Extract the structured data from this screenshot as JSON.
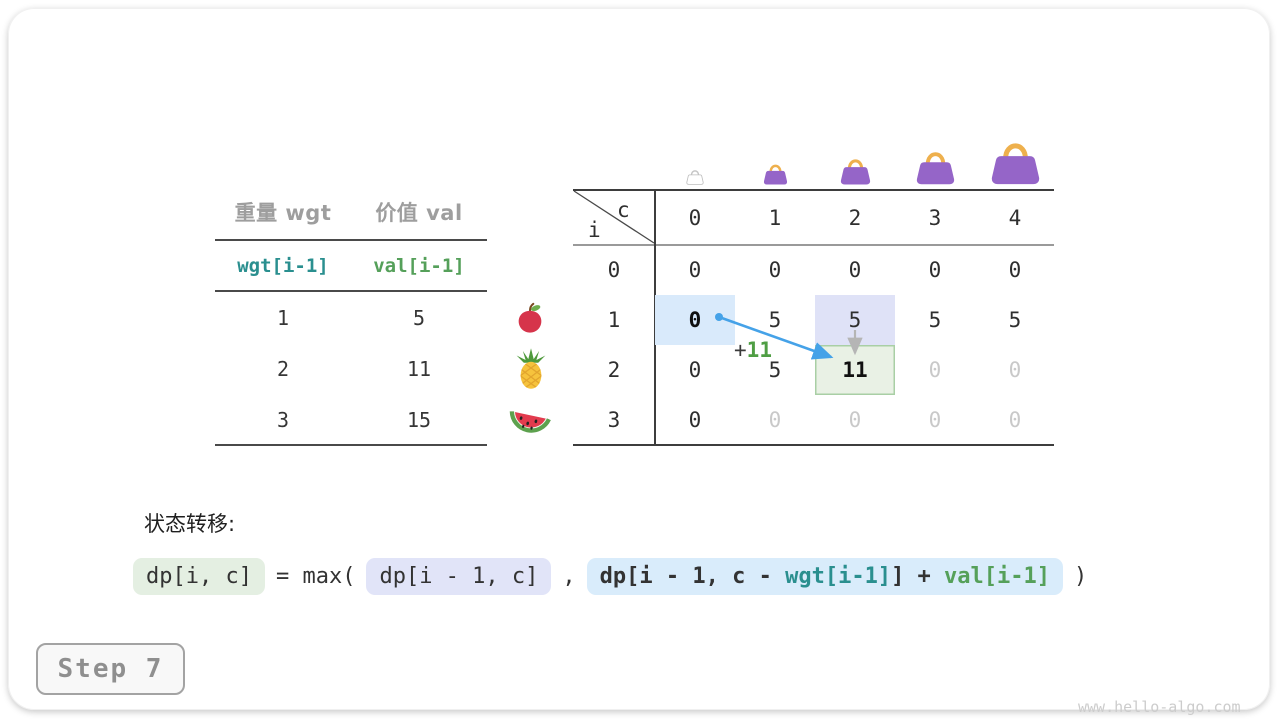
{
  "items_table": {
    "col_headers": [
      "重量 wgt",
      "价值 val"
    ],
    "index_row": [
      "wgt[i-1]",
      "val[i-1]"
    ],
    "rows": [
      [
        "1",
        "5"
      ],
      [
        "2",
        "11"
      ],
      [
        "3",
        "15"
      ]
    ]
  },
  "fruits": [
    {
      "name": "apple"
    },
    {
      "name": "pineapple"
    },
    {
      "name": "watermelon"
    }
  ],
  "dp_table": {
    "corner_top": "c",
    "corner_left": "i",
    "col_headers": [
      "0",
      "1",
      "2",
      "3",
      "4"
    ],
    "row_headers": [
      "0",
      "1",
      "2",
      "3"
    ],
    "bag_capacities": [
      "0",
      "1",
      "2",
      "3",
      "4"
    ],
    "cells": [
      [
        {
          "v": "0"
        },
        {
          "v": "0"
        },
        {
          "v": "0"
        },
        {
          "v": "0"
        },
        {
          "v": "0"
        }
      ],
      [
        {
          "v": "0",
          "s": "b",
          "h": "blue"
        },
        {
          "v": "5"
        },
        {
          "v": "5",
          "h": "lavender"
        },
        {
          "v": "5"
        },
        {
          "v": "5"
        }
      ],
      [
        {
          "v": "0"
        },
        {
          "v": "5"
        },
        {
          "v": "11",
          "s": "b",
          "h": "green"
        },
        {
          "v": "0",
          "s": "d"
        },
        {
          "v": "0",
          "s": "d"
        }
      ],
      [
        {
          "v": "0"
        },
        {
          "v": "0",
          "s": "d"
        },
        {
          "v": "0",
          "s": "d"
        },
        {
          "v": "0",
          "s": "d"
        },
        {
          "v": "0",
          "s": "d"
        }
      ]
    ],
    "annotation_plus": "+",
    "annotation_value": "11"
  },
  "transition": {
    "label": "状态转移:",
    "tokens": [
      {
        "box": "green",
        "parts": [
          {
            "t": "dp[i, c]",
            "c": "dark"
          }
        ]
      },
      {
        "box": null,
        "parts": [
          {
            "t": "= max(",
            "c": "dark"
          }
        ]
      },
      {
        "box": "lavender",
        "parts": [
          {
            "t": "dp[i - 1, c]",
            "c": "dark"
          }
        ]
      },
      {
        "box": null,
        "parts": [
          {
            "t": ",",
            "c": "dark"
          }
        ]
      },
      {
        "box": "blue",
        "bold": true,
        "parts": [
          {
            "t": "dp[i - 1, c - ",
            "c": "dark"
          },
          {
            "t": "wgt[i-1]",
            "c": "teal"
          },
          {
            "t": "] + ",
            "c": "dark"
          },
          {
            "t": "val[i-1]",
            "c": "green"
          }
        ]
      },
      {
        "box": null,
        "parts": [
          {
            "t": ")",
            "c": "dark"
          }
        ]
      }
    ]
  },
  "step_badge": "Step 7",
  "watermark": "www.hello-algo.com",
  "colors": {
    "teal": "#2a8f8f",
    "green": "#55a05a",
    "value_green": "#4f9e44",
    "dim_text": "#c9c9c9",
    "highlight_blue": "#d9eafb",
    "highlight_lavender": "#dfe2f7",
    "highlight_green": "#e9f1e5",
    "highlight_green_border": "#a9cfa5",
    "arrow_blue": "#45a2e8",
    "arrow_gray": "#b5b5b5",
    "bag_purple": "#9565c8",
    "bag_handle": "#eeb04d"
  }
}
